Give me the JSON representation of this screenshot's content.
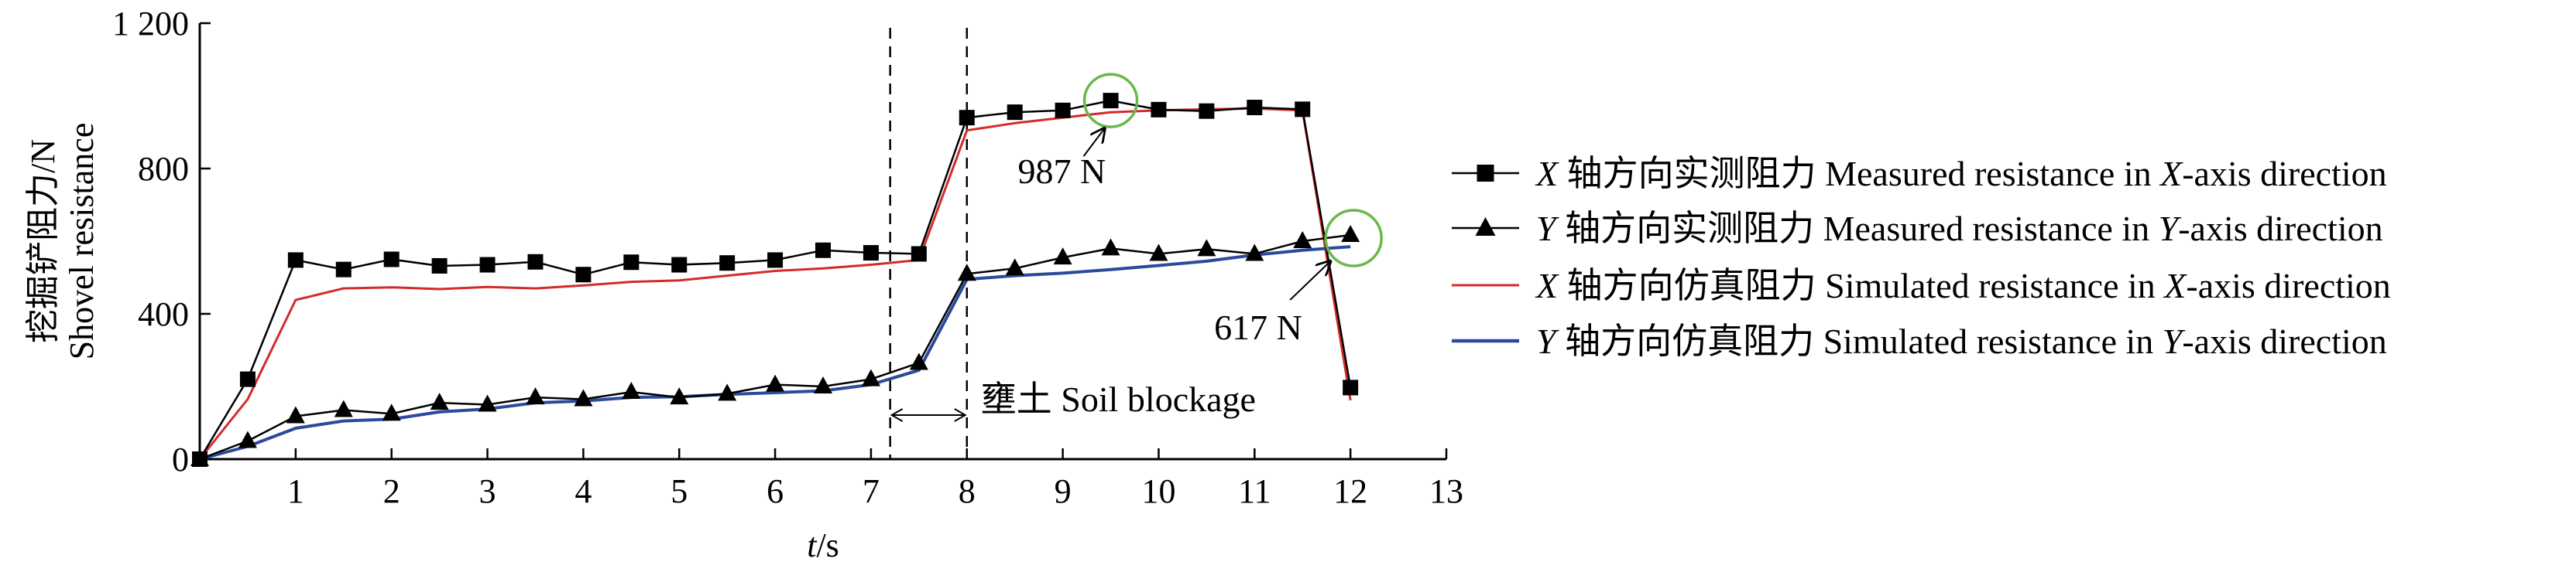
{
  "chart_data": {
    "type": "line",
    "ylabel_zh": "挖掘铲阻力/N",
    "ylabel_en": "Shovel resistance",
    "xlabel_var": "t",
    "xlabel_unit": "/s",
    "xlim": [
      0,
      13
    ],
    "ylim": [
      0,
      1200
    ],
    "xticks": [
      1,
      2,
      3,
      4,
      5,
      6,
      7,
      8,
      9,
      10,
      11,
      12,
      13
    ],
    "xtick_labels": [
      "1",
      "2",
      "3",
      "4",
      "5",
      "6",
      "7",
      "8",
      "9",
      "10",
      "11",
      "12",
      "13"
    ],
    "yticks": [
      0,
      400,
      800,
      1200
    ],
    "ytick_labels": [
      "0",
      "400",
      "800",
      "1 200"
    ],
    "origin_label": "0",
    "series": [
      {
        "name": "X 轴方向实测阻力 Measured resistance in X-axis direction",
        "legend_var": "X",
        "legend_zh": " 轴方向实测阻力",
        "legend_en_pre": "Measured resistance in ",
        "legend_en_var": "X",
        "legend_en_post": "-axis direction",
        "color": "#000000",
        "marker": "square",
        "x": [
          0,
          0.5,
          1,
          1.5,
          2,
          2.5,
          3,
          3.5,
          4,
          4.5,
          5,
          5.5,
          6,
          6.5,
          7,
          7.5,
          8,
          8.5,
          9,
          9.5,
          10,
          10.5,
          11,
          11.5,
          12
        ],
        "y": [
          0,
          220,
          548,
          522,
          550,
          532,
          535,
          543,
          508,
          542,
          535,
          540,
          548,
          575,
          568,
          565,
          940,
          955,
          960,
          987,
          962,
          958,
          968,
          963,
          197
        ]
      },
      {
        "name": "Y 轴方向实测阻力 Measured resistance in Y-axis direction",
        "legend_var": "Y",
        "legend_zh": " 轴方向实测阻力",
        "legend_en_pre": "Measured resistance in ",
        "legend_en_var": "Y",
        "legend_en_post": "-axis direction",
        "color": "#000000",
        "marker": "triangle",
        "x": [
          0,
          0.5,
          1,
          1.5,
          2,
          2.5,
          3,
          3.5,
          4,
          4.5,
          5,
          5.5,
          6,
          6.5,
          7,
          7.5,
          8,
          8.5,
          9,
          9.5,
          10,
          10.5,
          11,
          11.5,
          12
        ],
        "y": [
          0,
          50,
          118,
          135,
          125,
          155,
          150,
          170,
          165,
          185,
          170,
          180,
          205,
          200,
          220,
          265,
          510,
          525,
          555,
          580,
          565,
          578,
          565,
          600,
          617
        ]
      },
      {
        "name": "X 轴方向仿真阻力 Simulated resistance in X-axis direction",
        "legend_var": "X",
        "legend_zh": " 轴方向仿真阻力",
        "legend_en_pre": "Simulated resistance in ",
        "legend_en_var": "X",
        "legend_en_post": "-axis direction",
        "color": "#d42a2a",
        "marker": "none",
        "x": [
          0,
          0.5,
          1,
          1.5,
          2,
          2.5,
          3,
          3.5,
          4,
          4.5,
          5,
          5.5,
          6,
          6.5,
          7,
          7.5,
          8,
          8.5,
          9,
          9.5,
          10,
          10.5,
          11,
          11.5,
          12
        ],
        "y": [
          0,
          165,
          438,
          470,
          473,
          468,
          474,
          470,
          478,
          488,
          492,
          505,
          518,
          525,
          535,
          548,
          905,
          925,
          940,
          955,
          960,
          963,
          965,
          960,
          162
        ]
      },
      {
        "name": "Y 轴方向仿真阻力 Simulated resistance in Y-axis direction",
        "legend_var": "Y",
        "legend_zh": " 轴方向仿真阻力",
        "legend_en_pre": "Simulated resistance in ",
        "legend_en_var": "Y",
        "legend_en_post": "-axis direction",
        "color": "#2a4a9c",
        "marker": "none",
        "x": [
          0,
          0.5,
          1,
          1.5,
          2,
          2.5,
          3,
          3.5,
          4,
          4.5,
          5,
          5.5,
          6,
          6.5,
          7,
          7.5,
          8,
          8.5,
          9,
          9.5,
          10,
          10.5,
          11,
          11.5,
          12
        ],
        "y": [
          0,
          35,
          85,
          105,
          110,
          130,
          138,
          155,
          160,
          170,
          172,
          178,
          183,
          188,
          205,
          245,
          495,
          505,
          512,
          522,
          533,
          545,
          562,
          575,
          585
        ]
      }
    ],
    "annotations": {
      "peak_x_label": "987 N",
      "peak_x_at": [
        9.5,
        987
      ],
      "peak_y_label": "617 N",
      "peak_y_at": [
        12,
        617
      ],
      "vlines_x": [
        7.2,
        8.0
      ],
      "blockage_label": "壅土 Soil blockage",
      "highlight_color": "#6ab84a"
    },
    "grid": false,
    "legend_position": "right"
  }
}
